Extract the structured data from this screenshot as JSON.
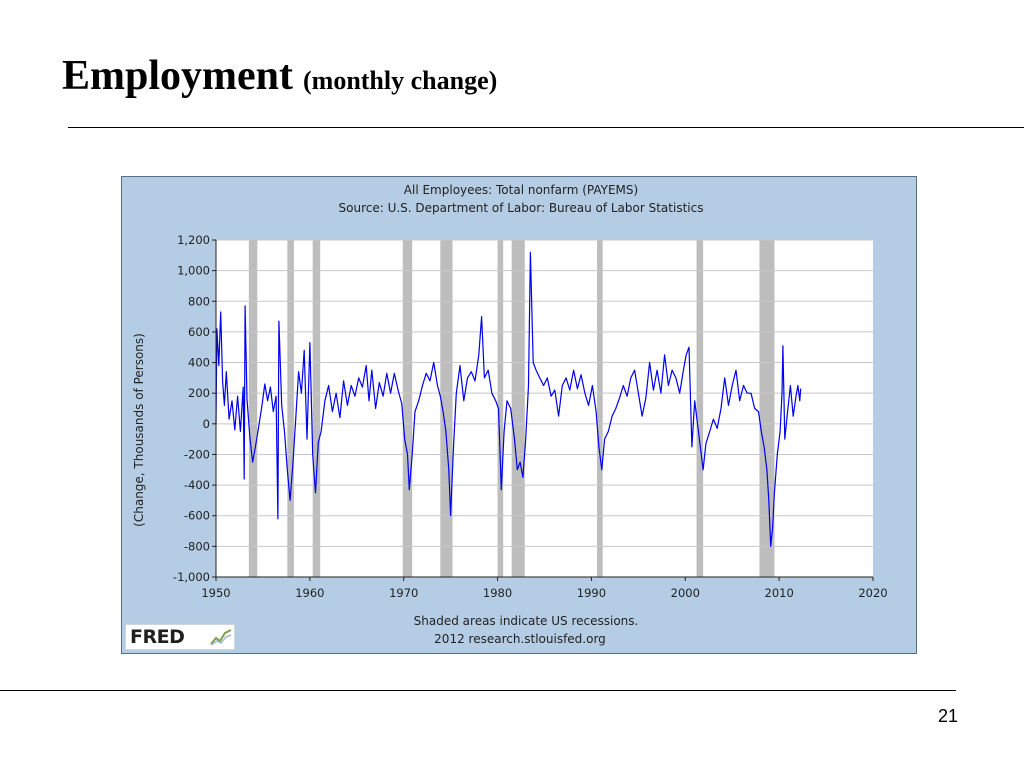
{
  "slide": {
    "title": "Employment",
    "subtitle": "(monthly change)",
    "page_number": "21"
  },
  "logo": {
    "text": "FRED",
    "icon": "trend-graph-icon"
  },
  "colors": {
    "frame_bg": "#b4cce4",
    "plot_bg": "#ffffff",
    "line": "#0000ee",
    "recession": "#bdbdbd",
    "grid": "#c8c8c8"
  },
  "chart_data": {
    "type": "line",
    "title": "All Employees: Total nonfarm (PAYEMS)",
    "subtitle": "Source: U.S. Department of Labor: Bureau of Labor Statistics",
    "ylabel": "(Change, Thousands of Persons)",
    "xlabel": "",
    "xlim": [
      1950,
      2020
    ],
    "ylim": [
      -1000,
      1200
    ],
    "xticks": [
      "1950",
      "1960",
      "1970",
      "1980",
      "1990",
      "2000",
      "2010",
      "2020"
    ],
    "yticks": [
      "1,200",
      "1,000",
      "800",
      "600",
      "400",
      "200",
      "0",
      "-200",
      "-400",
      "-600",
      "-800",
      "-1,000"
    ],
    "grid": true,
    "footnote": "Shaded areas indicate US recessions.",
    "credit": "2012 research.stlouisfed.org",
    "recessions": [
      [
        1953.5,
        1954.4
      ],
      [
        1957.6,
        1958.3
      ],
      [
        1960.3,
        1961.1
      ],
      [
        1969.9,
        1970.9
      ],
      [
        1973.9,
        1975.2
      ],
      [
        1980.0,
        1980.6
      ],
      [
        1981.5,
        1982.9
      ],
      [
        1990.6,
        1991.2
      ],
      [
        2001.2,
        2001.9
      ],
      [
        2007.9,
        2009.5
      ]
    ],
    "series": [
      {
        "values": [
          [
            1950.0,
            0
          ],
          [
            1950.1,
            620
          ],
          [
            1950.3,
            380
          ],
          [
            1950.5,
            730
          ],
          [
            1950.7,
            280
          ],
          [
            1950.9,
            120
          ],
          [
            1951.1,
            340
          ],
          [
            1951.4,
            30
          ],
          [
            1951.7,
            150
          ],
          [
            1952.0,
            -40
          ],
          [
            1952.3,
            180
          ],
          [
            1952.6,
            -50
          ],
          [
            1952.9,
            240
          ],
          [
            1953.0,
            -360
          ],
          [
            1953.1,
            770
          ],
          [
            1953.3,
            160
          ],
          [
            1953.6,
            -80
          ],
          [
            1953.9,
            -250
          ],
          [
            1954.2,
            -150
          ],
          [
            1954.5,
            -40
          ],
          [
            1954.9,
            120
          ],
          [
            1955.2,
            260
          ],
          [
            1955.5,
            150
          ],
          [
            1955.8,
            240
          ],
          [
            1956.1,
            80
          ],
          [
            1956.4,
            180
          ],
          [
            1956.6,
            -620
          ],
          [
            1956.7,
            670
          ],
          [
            1957.0,
            120
          ],
          [
            1957.3,
            -50
          ],
          [
            1957.6,
            -300
          ],
          [
            1957.9,
            -500
          ],
          [
            1958.2,
            -250
          ],
          [
            1958.5,
            40
          ],
          [
            1958.8,
            340
          ],
          [
            1959.1,
            200
          ],
          [
            1959.4,
            480
          ],
          [
            1959.7,
            -100
          ],
          [
            1960.0,
            530
          ],
          [
            1960.3,
            -200
          ],
          [
            1960.6,
            -450
          ],
          [
            1960.9,
            -120
          ],
          [
            1961.2,
            -50
          ],
          [
            1961.6,
            150
          ],
          [
            1962.0,
            250
          ],
          [
            1962.4,
            80
          ],
          [
            1962.8,
            200
          ],
          [
            1963.2,
            40
          ],
          [
            1963.6,
            280
          ],
          [
            1964.0,
            120
          ],
          [
            1964.4,
            250
          ],
          [
            1964.8,
            180
          ],
          [
            1965.2,
            300
          ],
          [
            1965.6,
            240
          ],
          [
            1966.0,
            380
          ],
          [
            1966.3,
            150
          ],
          [
            1966.6,
            350
          ],
          [
            1967.0,
            100
          ],
          [
            1967.4,
            270
          ],
          [
            1967.8,
            180
          ],
          [
            1968.2,
            330
          ],
          [
            1968.6,
            200
          ],
          [
            1969.0,
            330
          ],
          [
            1969.4,
            220
          ],
          [
            1969.8,
            130
          ],
          [
            1970.1,
            -100
          ],
          [
            1970.4,
            -200
          ],
          [
            1970.6,
            -430
          ],
          [
            1970.9,
            -200
          ],
          [
            1971.2,
            80
          ],
          [
            1971.6,
            150
          ],
          [
            1972.0,
            250
          ],
          [
            1972.4,
            330
          ],
          [
            1972.8,
            280
          ],
          [
            1973.2,
            400
          ],
          [
            1973.6,
            250
          ],
          [
            1973.9,
            180
          ],
          [
            1974.2,
            80
          ],
          [
            1974.5,
            -50
          ],
          [
            1974.8,
            -300
          ],
          [
            1975.0,
            -600
          ],
          [
            1975.3,
            -150
          ],
          [
            1975.6,
            200
          ],
          [
            1976.0,
            380
          ],
          [
            1976.4,
            150
          ],
          [
            1976.8,
            300
          ],
          [
            1977.2,
            340
          ],
          [
            1977.6,
            280
          ],
          [
            1978.0,
            450
          ],
          [
            1978.3,
            700
          ],
          [
            1978.6,
            300
          ],
          [
            1979.0,
            350
          ],
          [
            1979.4,
            200
          ],
          [
            1979.8,
            150
          ],
          [
            1980.1,
            100
          ],
          [
            1980.4,
            -430
          ],
          [
            1980.7,
            -50
          ],
          [
            1981.0,
            150
          ],
          [
            1981.4,
            100
          ],
          [
            1981.8,
            -100
          ],
          [
            1982.1,
            -300
          ],
          [
            1982.4,
            -250
          ],
          [
            1982.7,
            -350
          ],
          [
            1983.0,
            -100
          ],
          [
            1983.3,
            250
          ],
          [
            1983.5,
            1120
          ],
          [
            1983.8,
            400
          ],
          [
            1984.1,
            350
          ],
          [
            1984.5,
            300
          ],
          [
            1984.9,
            250
          ],
          [
            1985.3,
            300
          ],
          [
            1985.7,
            180
          ],
          [
            1986.1,
            220
          ],
          [
            1986.5,
            50
          ],
          [
            1986.9,
            250
          ],
          [
            1987.3,
            300
          ],
          [
            1987.7,
            220
          ],
          [
            1988.1,
            350
          ],
          [
            1988.5,
            230
          ],
          [
            1988.9,
            320
          ],
          [
            1989.3,
            200
          ],
          [
            1989.7,
            120
          ],
          [
            1990.1,
            250
          ],
          [
            1990.5,
            80
          ],
          [
            1990.8,
            -150
          ],
          [
            1991.1,
            -300
          ],
          [
            1991.4,
            -100
          ],
          [
            1991.8,
            -50
          ],
          [
            1992.2,
            50
          ],
          [
            1992.6,
            100
          ],
          [
            1993.0,
            170
          ],
          [
            1993.4,
            250
          ],
          [
            1993.8,
            180
          ],
          [
            1994.2,
            300
          ],
          [
            1994.6,
            350
          ],
          [
            1995.0,
            200
          ],
          [
            1995.4,
            50
          ],
          [
            1995.8,
            170
          ],
          [
            1996.2,
            400
          ],
          [
            1996.6,
            220
          ],
          [
            1997.0,
            350
          ],
          [
            1997.4,
            200
          ],
          [
            1997.8,
            450
          ],
          [
            1998.2,
            250
          ],
          [
            1998.6,
            350
          ],
          [
            1999.0,
            300
          ],
          [
            1999.4,
            200
          ],
          [
            1999.8,
            350
          ],
          [
            2000.1,
            450
          ],
          [
            2000.4,
            500
          ],
          [
            2000.7,
            -150
          ],
          [
            2001.0,
            150
          ],
          [
            2001.3,
            0
          ],
          [
            2001.6,
            -150
          ],
          [
            2001.9,
            -300
          ],
          [
            2002.2,
            -130
          ],
          [
            2002.6,
            -50
          ],
          [
            2003.0,
            30
          ],
          [
            2003.4,
            -30
          ],
          [
            2003.8,
            100
          ],
          [
            2004.2,
            300
          ],
          [
            2004.6,
            120
          ],
          [
            2005.0,
            250
          ],
          [
            2005.4,
            350
          ],
          [
            2005.8,
            150
          ],
          [
            2006.2,
            250
          ],
          [
            2006.6,
            200
          ],
          [
            2007.0,
            200
          ],
          [
            2007.4,
            100
          ],
          [
            2007.8,
            80
          ],
          [
            2008.1,
            -50
          ],
          [
            2008.4,
            -150
          ],
          [
            2008.7,
            -300
          ],
          [
            2008.9,
            -500
          ],
          [
            2009.1,
            -800
          ],
          [
            2009.3,
            -680
          ],
          [
            2009.5,
            -450
          ],
          [
            2009.8,
            -200
          ],
          [
            2010.1,
            -50
          ],
          [
            2010.3,
            200
          ],
          [
            2010.4,
            510
          ],
          [
            2010.6,
            -100
          ],
          [
            2010.9,
            80
          ],
          [
            2011.2,
            250
          ],
          [
            2011.5,
            50
          ],
          [
            2011.8,
            180
          ],
          [
            2012.0,
            250
          ],
          [
            2012.2,
            150
          ],
          [
            2012.3,
            230
          ]
        ]
      }
    ]
  }
}
